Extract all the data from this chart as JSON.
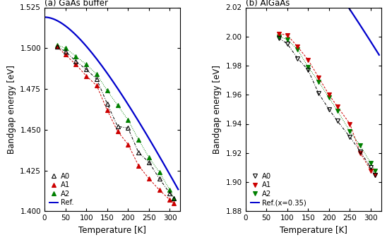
{
  "panel_a": {
    "title": "(a) GaAs buffer",
    "ylabel": "Bandgap energy [eV]",
    "xlabel": "Temperature [K]",
    "ylim": [
      1.4,
      1.525
    ],
    "xlim": [
      0,
      325
    ],
    "yticks": [
      1.4,
      1.425,
      1.45,
      1.475,
      1.5,
      1.525
    ],
    "xticks": [
      0,
      50,
      100,
      150,
      200,
      250,
      300
    ],
    "A0_T": [
      30,
      50,
      75,
      100,
      125,
      150,
      175,
      200,
      225,
      250,
      275,
      300,
      310
    ],
    "A0_E": [
      1.501,
      1.498,
      1.492,
      1.487,
      1.481,
      1.466,
      1.452,
      1.451,
      1.436,
      1.43,
      1.42,
      1.411,
      1.408
    ],
    "A1_T": [
      30,
      50,
      75,
      100,
      125,
      150,
      175,
      200,
      225,
      250,
      275,
      300,
      310
    ],
    "A1_E": [
      1.501,
      1.496,
      1.49,
      1.483,
      1.477,
      1.462,
      1.449,
      1.441,
      1.428,
      1.42,
      1.413,
      1.407,
      1.405
    ],
    "A2_T": [
      30,
      50,
      75,
      100,
      125,
      150,
      175,
      200,
      225,
      250,
      275,
      300,
      310
    ],
    "A2_E": [
      1.502,
      1.5,
      1.495,
      1.49,
      1.484,
      1.474,
      1.465,
      1.456,
      1.444,
      1.433,
      1.424,
      1.413,
      1.408
    ],
    "ref_varshni_E0": 1.519,
    "ref_alpha": 0.0005405,
    "ref_beta": 204
  },
  "panel_b": {
    "title": "(b) AlGaAs",
    "ylabel": "Bandgap energy [eV]",
    "xlabel": "Temperature [K]",
    "ylim": [
      1.88,
      2.02
    ],
    "xlim": [
      0,
      325
    ],
    "yticks": [
      1.88,
      1.9,
      1.92,
      1.94,
      1.96,
      1.98,
      2.0,
      2.02
    ],
    "xticks": [
      0,
      50,
      100,
      150,
      200,
      250,
      300
    ],
    "A0_T": [
      80,
      100,
      125,
      150,
      175,
      200,
      220,
      250,
      275,
      300,
      310
    ],
    "A0_E": [
      1.999,
      1.995,
      1.985,
      1.977,
      1.961,
      1.95,
      1.942,
      1.931,
      1.921,
      1.91,
      1.905
    ],
    "A1_T": [
      80,
      100,
      125,
      150,
      175,
      200,
      220,
      250,
      275,
      300,
      310
    ],
    "A1_E": [
      2.002,
      2.001,
      1.993,
      1.984,
      1.972,
      1.96,
      1.952,
      1.94,
      1.92,
      1.908,
      1.905
    ],
    "A2_T": [
      80,
      100,
      125,
      150,
      175,
      200,
      220,
      250,
      275,
      300,
      310
    ],
    "A2_E": [
      2.0,
      1.998,
      1.991,
      1.979,
      1.969,
      1.958,
      1.949,
      1.935,
      1.925,
      1.913,
      1.908
    ],
    "ref_varshni_E0": 2.093,
    "ref_alpha": 0.0005405,
    "ref_beta": 204
  },
  "colors": {
    "A0": "#000000",
    "A1": "#cc0000",
    "A2": "#008000",
    "ref": "#0000cc"
  },
  "figsize": [
    5.48,
    3.5
  ],
  "dpi": 100
}
